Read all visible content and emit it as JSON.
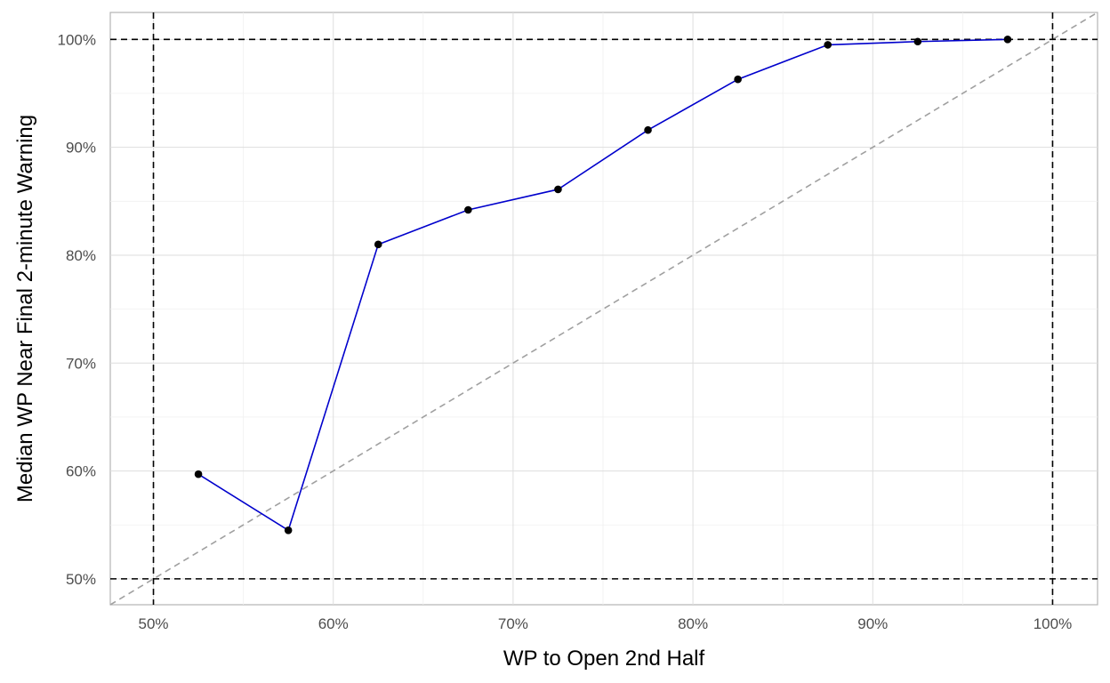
{
  "chart_data": {
    "type": "line",
    "title": "",
    "xlabel": "WP to Open 2nd Half",
    "ylabel": "Median WP Near Final 2-minute Warning",
    "xlim": [
      0.476,
      1.025
    ],
    "ylim": [
      0.476,
      1.025
    ],
    "x_ticks": [
      {
        "value": 0.5,
        "label": "50%"
      },
      {
        "value": 0.6,
        "label": "60%"
      },
      {
        "value": 0.7,
        "label": "70%"
      },
      {
        "value": 0.8,
        "label": "80%"
      },
      {
        "value": 0.9,
        "label": "90%"
      },
      {
        "value": 1.0,
        "label": "100%"
      }
    ],
    "y_ticks": [
      {
        "value": 0.5,
        "label": "50%"
      },
      {
        "value": 0.6,
        "label": "60%"
      },
      {
        "value": 0.7,
        "label": "70%"
      },
      {
        "value": 0.8,
        "label": "80%"
      },
      {
        "value": 0.9,
        "label": "90%"
      },
      {
        "value": 1.0,
        "label": "100%"
      }
    ],
    "grid": true,
    "series": [
      {
        "color": "#0000cc",
        "marker_color": "#000000",
        "points": [
          {
            "x": 0.525,
            "y": 0.597
          },
          {
            "x": 0.575,
            "y": 0.545
          },
          {
            "x": 0.625,
            "y": 0.81
          },
          {
            "x": 0.675,
            "y": 0.842
          },
          {
            "x": 0.725,
            "y": 0.861
          },
          {
            "x": 0.775,
            "y": 0.916
          },
          {
            "x": 0.825,
            "y": 0.963
          },
          {
            "x": 0.875,
            "y": 0.995
          },
          {
            "x": 0.925,
            "y": 0.998
          },
          {
            "x": 0.975,
            "y": 1.0
          }
        ]
      }
    ],
    "reference_lines": {
      "diagonal": {
        "from": [
          0.476,
          0.476
        ],
        "to": [
          1.025,
          1.025
        ],
        "color": "#a0a0a0",
        "style": "dashed"
      },
      "vertical": [
        0.5,
        1.0
      ],
      "horizontal": [
        0.5,
        1.0
      ],
      "color": "#000000",
      "style": "dashed"
    }
  }
}
